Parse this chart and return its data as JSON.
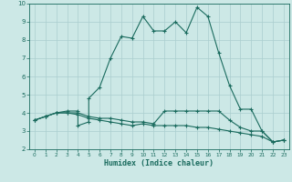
{
  "title": "",
  "xlabel": "Humidex (Indice chaleur)",
  "xlim": [
    -0.5,
    23.5
  ],
  "ylim": [
    2,
    10
  ],
  "xticks": [
    0,
    1,
    2,
    3,
    4,
    5,
    6,
    7,
    8,
    9,
    10,
    11,
    12,
    13,
    14,
    15,
    16,
    17,
    18,
    19,
    20,
    21,
    22,
    23
  ],
  "yticks": [
    2,
    3,
    4,
    5,
    6,
    7,
    8,
    9,
    10
  ],
  "bg_color": "#cce8e6",
  "line_color": "#1a6b5e",
  "grid_color": "#aacece",
  "line1_x": [
    0,
    1,
    2,
    3,
    4,
    4,
    5,
    5,
    6,
    7,
    8,
    9,
    10,
    11,
    12,
    13,
    14,
    15,
    16,
    17,
    18,
    19,
    20,
    21,
    22,
    23
  ],
  "line1_y": [
    3.6,
    3.8,
    4.0,
    4.1,
    4.1,
    3.3,
    3.5,
    4.8,
    5.4,
    7.0,
    8.2,
    8.1,
    9.3,
    8.5,
    8.5,
    9.0,
    8.4,
    9.8,
    9.3,
    7.3,
    5.5,
    4.2,
    4.2,
    3.0,
    2.4,
    2.5
  ],
  "line2_x": [
    0,
    1,
    2,
    3,
    4,
    5,
    6,
    7,
    8,
    9,
    10,
    11,
    12,
    13,
    14,
    15,
    16,
    17,
    18,
    19,
    20,
    21,
    22,
    23
  ],
  "line2_y": [
    3.6,
    3.8,
    4.0,
    4.0,
    4.0,
    3.8,
    3.7,
    3.7,
    3.6,
    3.5,
    3.5,
    3.4,
    4.1,
    4.1,
    4.1,
    4.1,
    4.1,
    4.1,
    3.6,
    3.2,
    3.0,
    3.0,
    2.4,
    2.5
  ],
  "line3_x": [
    0,
    1,
    2,
    3,
    4,
    5,
    6,
    7,
    8,
    9,
    10,
    11,
    12,
    13,
    14,
    15,
    16,
    17,
    18,
    19,
    20,
    21,
    22,
    23
  ],
  "line3_y": [
    3.6,
    3.8,
    4.0,
    4.0,
    3.9,
    3.7,
    3.6,
    3.5,
    3.4,
    3.3,
    3.4,
    3.3,
    3.3,
    3.3,
    3.3,
    3.2,
    3.2,
    3.1,
    3.0,
    2.9,
    2.8,
    2.7,
    2.4,
    2.5
  ]
}
